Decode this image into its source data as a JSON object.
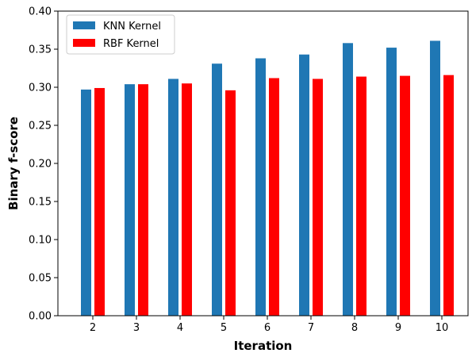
{
  "chart_data": {
    "type": "bar",
    "title": "",
    "xlabel": "Iteration",
    "ylabel": "Binary f-score",
    "categories": [
      "2",
      "3",
      "4",
      "5",
      "6",
      "7",
      "8",
      "9",
      "10"
    ],
    "series": [
      {
        "name": "KNN Kernel",
        "color": "#1f77b4",
        "values": [
          0.297,
          0.304,
          0.311,
          0.331,
          0.338,
          0.343,
          0.358,
          0.352,
          0.361
        ]
      },
      {
        "name": "RBF Kernel",
        "color": "#ff0000",
        "values": [
          0.299,
          0.304,
          0.305,
          0.296,
          0.312,
          0.311,
          0.314,
          0.315,
          0.316
        ]
      }
    ],
    "ylim": [
      0,
      0.4
    ],
    "yticks": [
      "0.00",
      "0.05",
      "0.10",
      "0.15",
      "0.20",
      "0.25",
      "0.30",
      "0.35",
      "0.40"
    ],
    "grid": false,
    "legend_position": "top-left"
  }
}
